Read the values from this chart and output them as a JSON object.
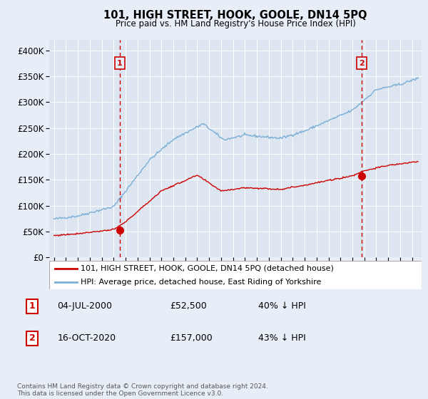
{
  "title": "101, HIGH STREET, HOOK, GOOLE, DN14 5PQ",
  "subtitle": "Price paid vs. HM Land Registry's House Price Index (HPI)",
  "background_color": "#e8eef8",
  "plot_bg_color": "#dde6f0",
  "grid_color": "#ffffff",
  "red_line_color": "#cc0000",
  "blue_line_color": "#7aaed6",
  "legend_label1": "101, HIGH STREET, HOOK, GOOLE, DN14 5PQ (detached house)",
  "legend_label2": "HPI: Average price, detached house, East Riding of Yorkshire",
  "note1_date": "04-JUL-2000",
  "note1_price": "£52,500",
  "note1_pct": "40% ↓ HPI",
  "note2_date": "16-OCT-2020",
  "note2_price": "£157,000",
  "note2_pct": "43% ↓ HPI",
  "copyright": "Contains HM Land Registry data © Crown copyright and database right 2024.\nThis data is licensed under the Open Government Licence v3.0.",
  "ylim": [
    0,
    420000
  ],
  "yticks": [
    0,
    50000,
    100000,
    150000,
    200000,
    250000,
    300000,
    350000,
    400000
  ],
  "ytick_labels": [
    "£0",
    "£50K",
    "£100K",
    "£150K",
    "£200K",
    "£250K",
    "£300K",
    "£350K",
    "£400K"
  ],
  "vline1_x": 2000.5,
  "vline2_x": 2020.79,
  "marker1_x": 2000.5,
  "marker1_y": 52500,
  "marker2_x": 2020.79,
  "marker2_y": 157000,
  "xlim_left": 1994.6,
  "xlim_right": 2025.8
}
